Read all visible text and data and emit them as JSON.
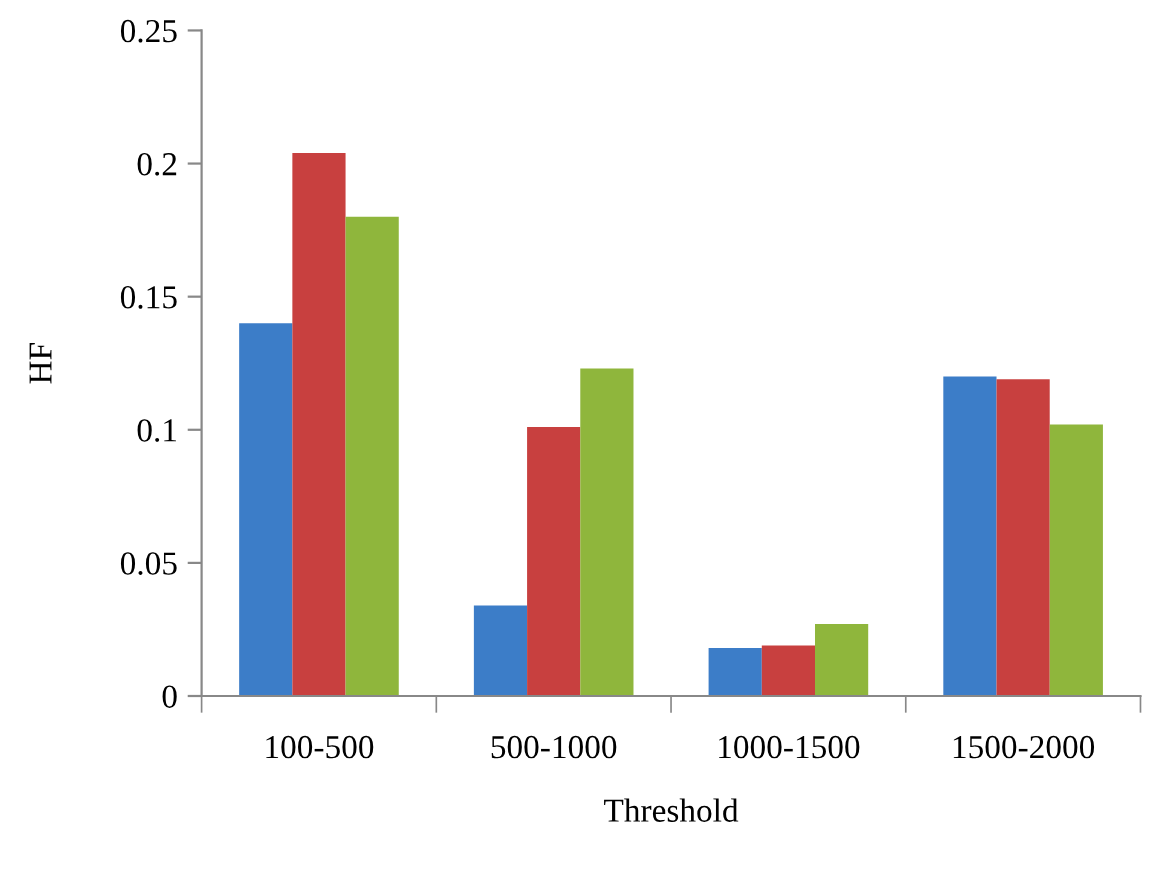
{
  "chart_data": {
    "type": "bar",
    "xlabel": "Threshold",
    "ylabel": "HF",
    "categories": [
      "100-500",
      "500-1000",
      "1000-1500",
      "1500-2000"
    ],
    "series": [
      {
        "color": "#3c7dc8",
        "values": [
          0.14,
          0.034,
          0.018,
          0.12
        ]
      },
      {
        "color": "#c8403f",
        "values": [
          0.204,
          0.101,
          0.019,
          0.119
        ]
      },
      {
        "color": "#8fb63c",
        "values": [
          0.18,
          0.123,
          0.027,
          0.102
        ]
      }
    ],
    "ylim": [
      0,
      0.25
    ],
    "yticks": [
      {
        "value": 0,
        "label": "0"
      },
      {
        "value": 0.05,
        "label": "0.05"
      },
      {
        "value": 0.1,
        "label": "0.1"
      },
      {
        "value": 0.15,
        "label": "0.15"
      },
      {
        "value": 0.2,
        "label": "0.2"
      },
      {
        "value": 0.25,
        "label": "0.25"
      }
    ],
    "grid": false,
    "legend": false
  }
}
